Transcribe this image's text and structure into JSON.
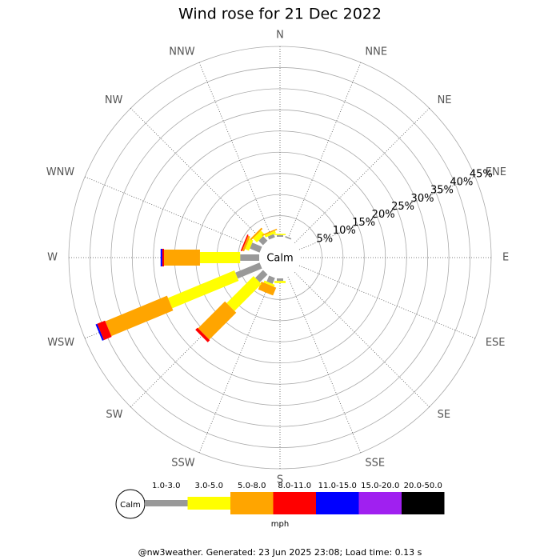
{
  "chart_data": {
    "type": "windrose",
    "title": "Wind rose for 21 Dec 2022",
    "calm_label": "Calm",
    "unit": "mph",
    "footer": "@nw3weather. Generated: 23 Jun 2025 23:08; Load time: 0.13 s",
    "categories": [
      "N",
      "NNE",
      "NE",
      "ENE",
      "E",
      "ESE",
      "SE",
      "SSE",
      "S",
      "SSW",
      "SW",
      "WSW",
      "W",
      "WNW",
      "NW",
      "NNW"
    ],
    "rlim": [
      0,
      45
    ],
    "rticks": [
      {
        "value": 5,
        "label": "5%"
      },
      {
        "value": 10,
        "label": "10%"
      },
      {
        "value": 15,
        "label": "15%"
      },
      {
        "value": 20,
        "label": "20%"
      },
      {
        "value": 25,
        "label": "25%"
      },
      {
        "value": 30,
        "label": "30%"
      },
      {
        "value": 35,
        "label": "35%"
      },
      {
        "value": 40,
        "label": "40%"
      },
      {
        "value": 45,
        "label": "45%"
      }
    ],
    "grid": true,
    "series": [
      {
        "name": "1.0-3.0",
        "color": "#999999",
        "values": [
          0.4,
          0.3,
          0,
          0,
          0,
          0,
          0,
          0,
          0.6,
          1.5,
          2.6,
          6.2,
          4.5,
          2.5,
          1.5,
          0.8
        ]
      },
      {
        "name": "3.0-5.0",
        "color": "#ffff00",
        "values": [
          0.3,
          0,
          0,
          0,
          0,
          0,
          0,
          0,
          0.5,
          0.5,
          9,
          17,
          9.5,
          1,
          1.3,
          0.6
        ]
      },
      {
        "name": "5.0-8.0",
        "color": "#ffa500",
        "values": [
          0,
          0,
          0,
          0,
          0,
          0,
          0,
          0,
          0,
          2,
          9,
          15.8,
          8.5,
          0.5,
          0.4,
          0.3
        ]
      },
      {
        "name": "8.0-11.0",
        "color": "#ff0000",
        "values": [
          0,
          0,
          0,
          0,
          0,
          0,
          0,
          0,
          0,
          0,
          0.7,
          2,
          0.4,
          0.3,
          0,
          0
        ]
      },
      {
        "name": "11.0-15.0",
        "color": "#0000ff",
        "values": [
          0,
          0,
          0,
          0,
          0,
          0,
          0,
          0,
          0,
          0,
          0,
          0.4,
          0.4,
          0,
          0,
          0
        ]
      },
      {
        "name": "15.0-20.0",
        "color": "#a020f0",
        "values": [
          0,
          0,
          0,
          0,
          0,
          0,
          0,
          0,
          0,
          0,
          0,
          0,
          0,
          0,
          0,
          0
        ]
      },
      {
        "name": "20.0-50.0",
        "color": "#000000",
        "values": [
          0,
          0,
          0,
          0,
          0,
          0,
          0,
          0,
          0,
          0,
          0,
          0,
          0,
          0,
          0,
          0
        ]
      }
    ]
  }
}
